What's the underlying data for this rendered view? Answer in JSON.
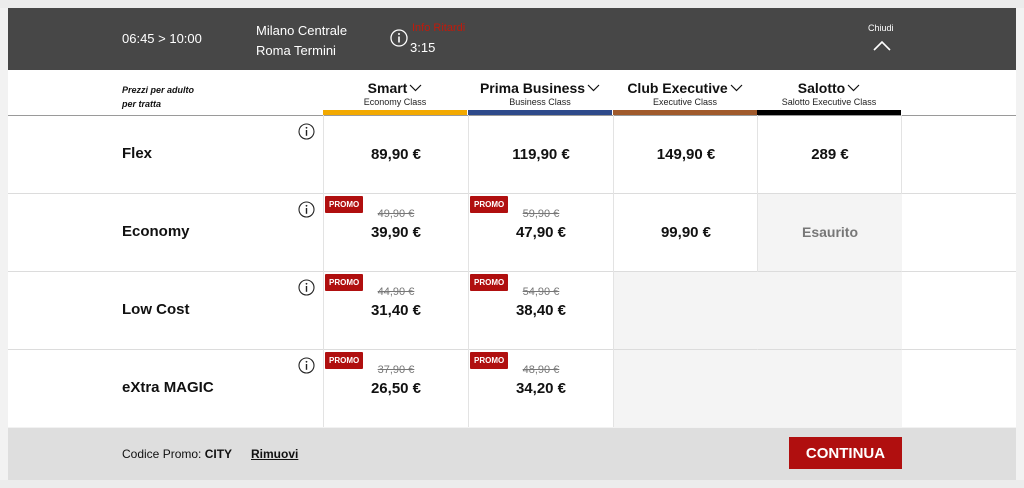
{
  "header": {
    "times": "06:45 > 10:00",
    "origin": "Milano Centrale",
    "destination": "Roma Termini",
    "alert": "Info Ritardi",
    "duration": "3:15",
    "close_label": "Chiudi"
  },
  "table": {
    "prices_note_line1": "Prezzi per adulto",
    "prices_note_line2": "per tratta",
    "columns": [
      {
        "name": "Smart",
        "sub": "Economy Class",
        "color": "#f2a900"
      },
      {
        "name": "Prima Business",
        "sub": "Business Class",
        "color": "#2e4a8a"
      },
      {
        "name": "Club Executive",
        "sub": "Executive Class",
        "color": "#a05a2c"
      },
      {
        "name": "Salotto",
        "sub": "Salotto Executive Class",
        "color": "#000000"
      }
    ],
    "promo_label": "PROMO",
    "sold_out_label": "Esaurito",
    "rows": [
      {
        "name": "Flex",
        "cells": [
          {
            "price": "89,90 €"
          },
          {
            "price": "119,90 €"
          },
          {
            "price": "149,90 €"
          },
          {
            "price": "289 €"
          }
        ]
      },
      {
        "name": "Economy",
        "cells": [
          {
            "old": "49,90 €",
            "price": "39,90 €"
          },
          {
            "old": "59,90 €",
            "price": "47,90 €"
          },
          {
            "price": "99,90 €"
          },
          {
            "sold_out": true
          }
        ]
      },
      {
        "name": "Low Cost",
        "cells": [
          {
            "old": "44,90 €",
            "price": "31,40 €"
          },
          {
            "old": "54,90 €",
            "price": "38,40 €"
          },
          {},
          {}
        ]
      },
      {
        "name": "eXtra MAGIC",
        "cells": [
          {
            "old": "37,90 €",
            "price": "26,50 €"
          },
          {
            "old": "48,90 €",
            "price": "34,20 €"
          },
          {},
          {}
        ]
      }
    ]
  },
  "footer": {
    "promo_label": "Codice Promo:",
    "promo_code": "CITY",
    "remove_label": "Rimuovi",
    "continue_label": "CONTINUA"
  },
  "colors": {
    "header_bg": "#474747",
    "accent_red": "#b00f0f",
    "footer_bg": "#dedede"
  }
}
